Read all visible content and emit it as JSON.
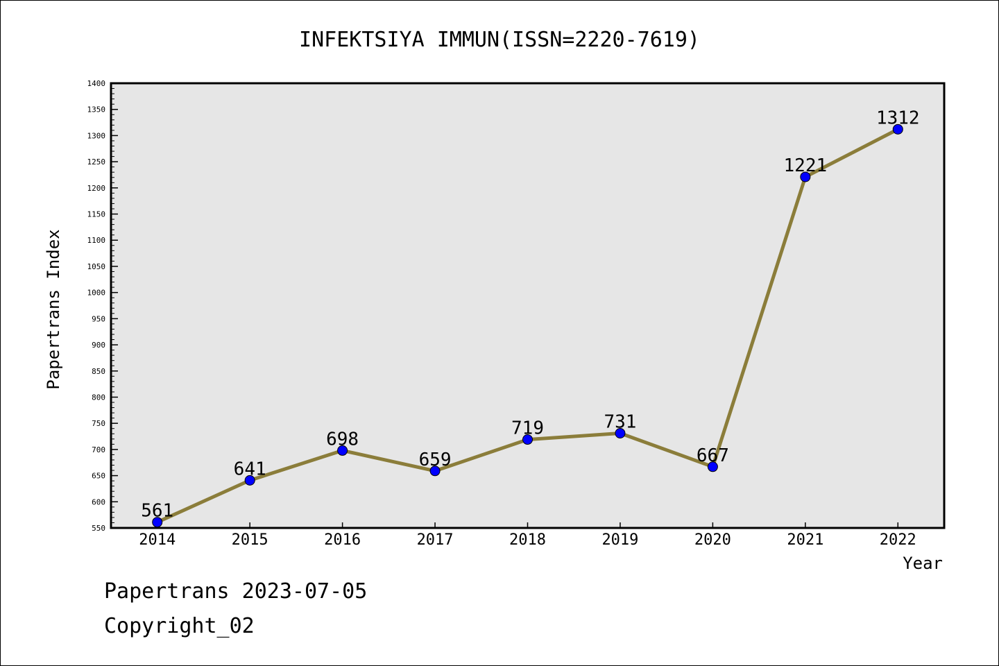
{
  "chart_data": {
    "type": "line",
    "title": "INFEKTSIYA IMMUN(ISSN=2220-7619)",
    "xlabel": "Year",
    "ylabel": "Papertrans Index",
    "categories": [
      "2014",
      "2015",
      "2016",
      "2017",
      "2018",
      "2019",
      "2020",
      "2021",
      "2022"
    ],
    "series": [
      {
        "values": [
          561,
          641,
          698,
          659,
          719,
          731,
          667,
          1221,
          1312
        ]
      }
    ],
    "ylim": [
      550,
      1400
    ],
    "yticks": [
      550,
      600,
      650,
      700,
      750,
      800,
      850,
      900,
      950,
      1000,
      1050,
      1100,
      1150,
      1200,
      1250,
      1300,
      1350,
      1400
    ],
    "data_labels": true,
    "grid": false,
    "colors": {
      "line": "#8b7d3a",
      "marker": "#0000ff",
      "plot_bg": "#e6e6e6"
    }
  },
  "footer": {
    "line1": "Papertrans 2023-07-05",
    "line2": "Copyright_02"
  }
}
